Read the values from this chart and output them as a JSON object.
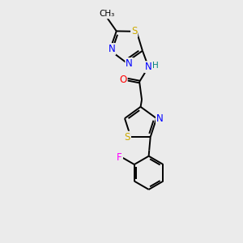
{
  "background_color": "#ebebeb",
  "atom_colors": {
    "N": "#0000ff",
    "S": "#ccaa00",
    "O": "#ff0000",
    "F": "#ff00ff",
    "H": "#008080",
    "C": "#000000"
  },
  "font_size": 8.5,
  "line_width": 1.4,
  "figsize": [
    3.0,
    3.0
  ],
  "dpi": 100,
  "xlim": [
    0,
    10
  ],
  "ylim": [
    0,
    10
  ]
}
